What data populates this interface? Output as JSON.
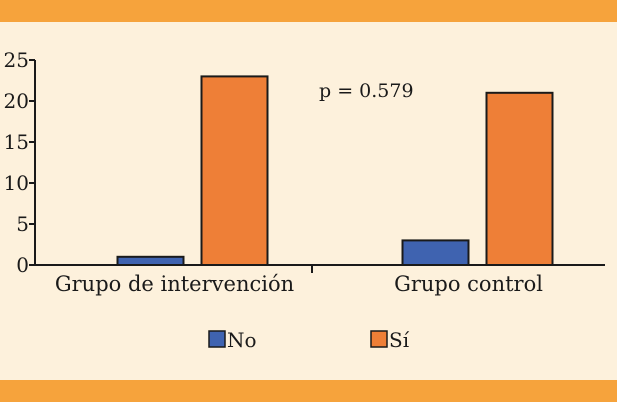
{
  "colors": {
    "background": "#fdf1dc",
    "band": "#f6a33c",
    "no": "#3f63b0",
    "si": "#ee7f37",
    "axis": "#1a1a1a"
  },
  "chart_data": {
    "type": "bar",
    "title": "",
    "xlabel": "",
    "ylabel": "",
    "categories": [
      "Grupo de intervención",
      "Grupo control"
    ],
    "series": [
      {
        "name": "No",
        "values": [
          1,
          3
        ]
      },
      {
        "name": "Sí",
        "values": [
          23,
          21
        ]
      }
    ],
    "ylim": [
      0,
      25
    ],
    "yticks": [
      "0",
      "5",
      "10",
      "15",
      "20",
      "25"
    ],
    "grid": false,
    "legend_position": "bottom-center",
    "annotation": "p = 0.579"
  }
}
